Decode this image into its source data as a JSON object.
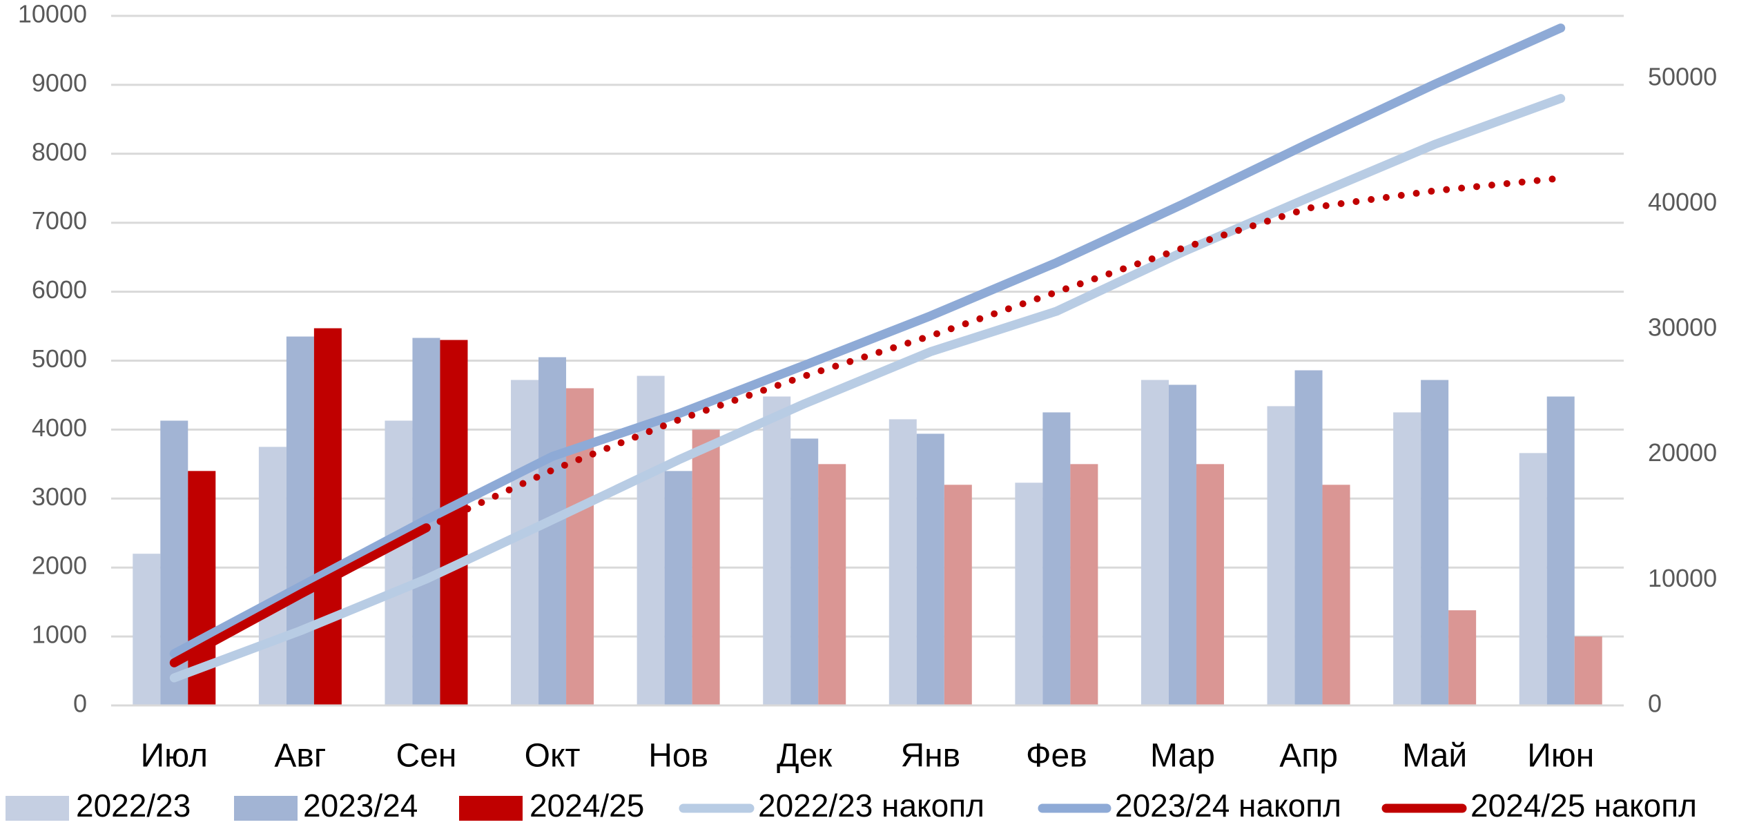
{
  "chart_data": {
    "type": "bar",
    "categories": [
      "Июл",
      "Авг",
      "Сен",
      "Окт",
      "Нов",
      "Дек",
      "Янв",
      "Фев",
      "Мар",
      "Апр",
      "Май",
      "Июн"
    ],
    "ylim": [
      0,
      10000
    ],
    "yticks": [
      0,
      1000,
      2000,
      3000,
      4000,
      5000,
      6000,
      7000,
      8000,
      9000,
      10000
    ],
    "y2lim": [
      0,
      55000
    ],
    "y2ticks": [
      0,
      10000,
      20000,
      30000,
      40000,
      50000
    ],
    "grid": true,
    "legend": "bottom",
    "series": [
      {
        "name": "2022/23",
        "type": "bar",
        "color": "#c5cfe2",
        "values": [
          2200,
          3750,
          4130,
          4720,
          4780,
          4480,
          4150,
          3230,
          4720,
          4340,
          4250,
          3660
        ]
      },
      {
        "name": "2023/24",
        "type": "bar",
        "color": "#a2b4d4",
        "values": [
          4130,
          5350,
          5330,
          5050,
          3400,
          3870,
          3940,
          4250,
          4650,
          4860,
          4720,
          4480
        ]
      },
      {
        "name": "2024/25",
        "type": "bar",
        "color": "#c00000",
        "forecast_color": "#da9694",
        "forecast_from": 3,
        "values": [
          3400,
          5470,
          5300,
          4600,
          4000,
          3500,
          3200,
          3500,
          3500,
          3200,
          1380,
          1000
        ]
      },
      {
        "name": "2022/23 накопл",
        "type": "line",
        "axis": "y2",
        "color": "#b8cce4",
        "values": [
          2200,
          5950,
          10080,
          14800,
          19580,
          24060,
          28210,
          31440,
          36160,
          40500,
          44750,
          48410
        ]
      },
      {
        "name": "2023/24 накопл",
        "type": "line",
        "axis": "y2",
        "color": "#8eaad6",
        "values": [
          4130,
          9480,
          14810,
          19860,
          23260,
          27130,
          31070,
          35320,
          39970,
          44830,
          49550,
          54030
        ]
      },
      {
        "name": "2024/25 накопл",
        "type": "line",
        "axis": "y2",
        "color": "#c00000",
        "forecast_from": 3,
        "values": [
          3400,
          8870,
          14170,
          18770,
          22770,
          26270,
          29470,
          32970,
          36470,
          39670,
          41050,
          42050
        ]
      }
    ]
  }
}
